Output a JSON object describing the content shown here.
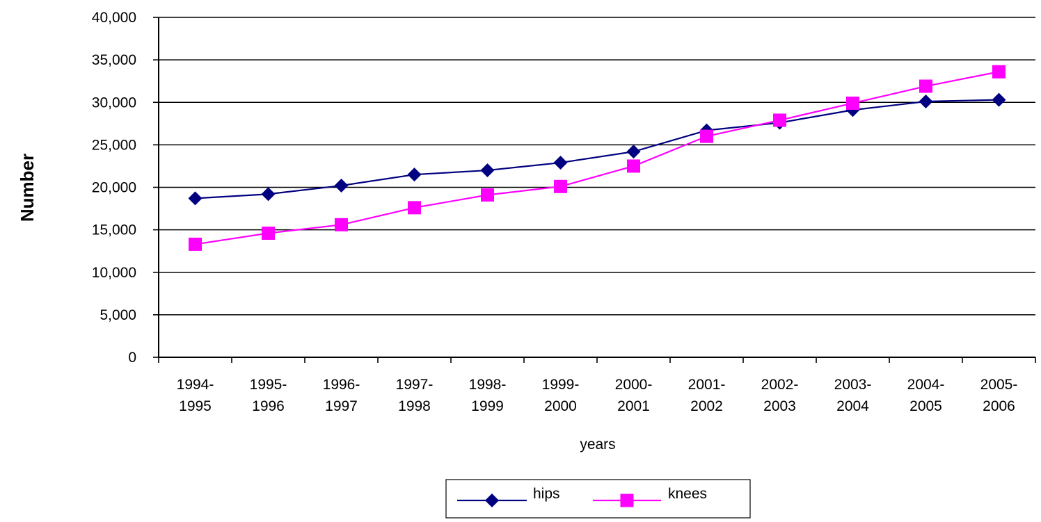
{
  "chart_data": {
    "type": "line",
    "title": "",
    "xlabel": "years",
    "ylabel": "Number",
    "categories": [
      [
        "1994-",
        "1995"
      ],
      [
        "1995-",
        "1996"
      ],
      [
        "1996-",
        "1997"
      ],
      [
        "1997-",
        "1998"
      ],
      [
        "1998-",
        "1999"
      ],
      [
        "1999-",
        "2000"
      ],
      [
        "2000-",
        "2001"
      ],
      [
        "2001-",
        "2002"
      ],
      [
        "2002-",
        "2003"
      ],
      [
        "2003-",
        "2004"
      ],
      [
        "2004-",
        "2005"
      ],
      [
        "2005-",
        "2006"
      ]
    ],
    "ylim": [
      0,
      40000
    ],
    "yticks": [
      0,
      5000,
      10000,
      15000,
      20000,
      25000,
      30000,
      35000,
      40000
    ],
    "ytick_labels": [
      "0",
      "5,000",
      "10,000",
      "15,000",
      "20,000",
      "25,000",
      "30,000",
      "35,000",
      "40,000"
    ],
    "grid": true,
    "legend_position": "bottom",
    "series": [
      {
        "name": "hips",
        "color": "#000080",
        "marker": "diamond",
        "values": [
          18700,
          19200,
          20200,
          21500,
          22000,
          22900,
          24200,
          26700,
          27600,
          29100,
          30100,
          30300
        ]
      },
      {
        "name": "knees",
        "color": "#FF00FF",
        "marker": "square",
        "values": [
          13300,
          14600,
          15600,
          17600,
          19100,
          20100,
          22500,
          26000,
          27900,
          29900,
          31900,
          33600
        ]
      }
    ]
  }
}
